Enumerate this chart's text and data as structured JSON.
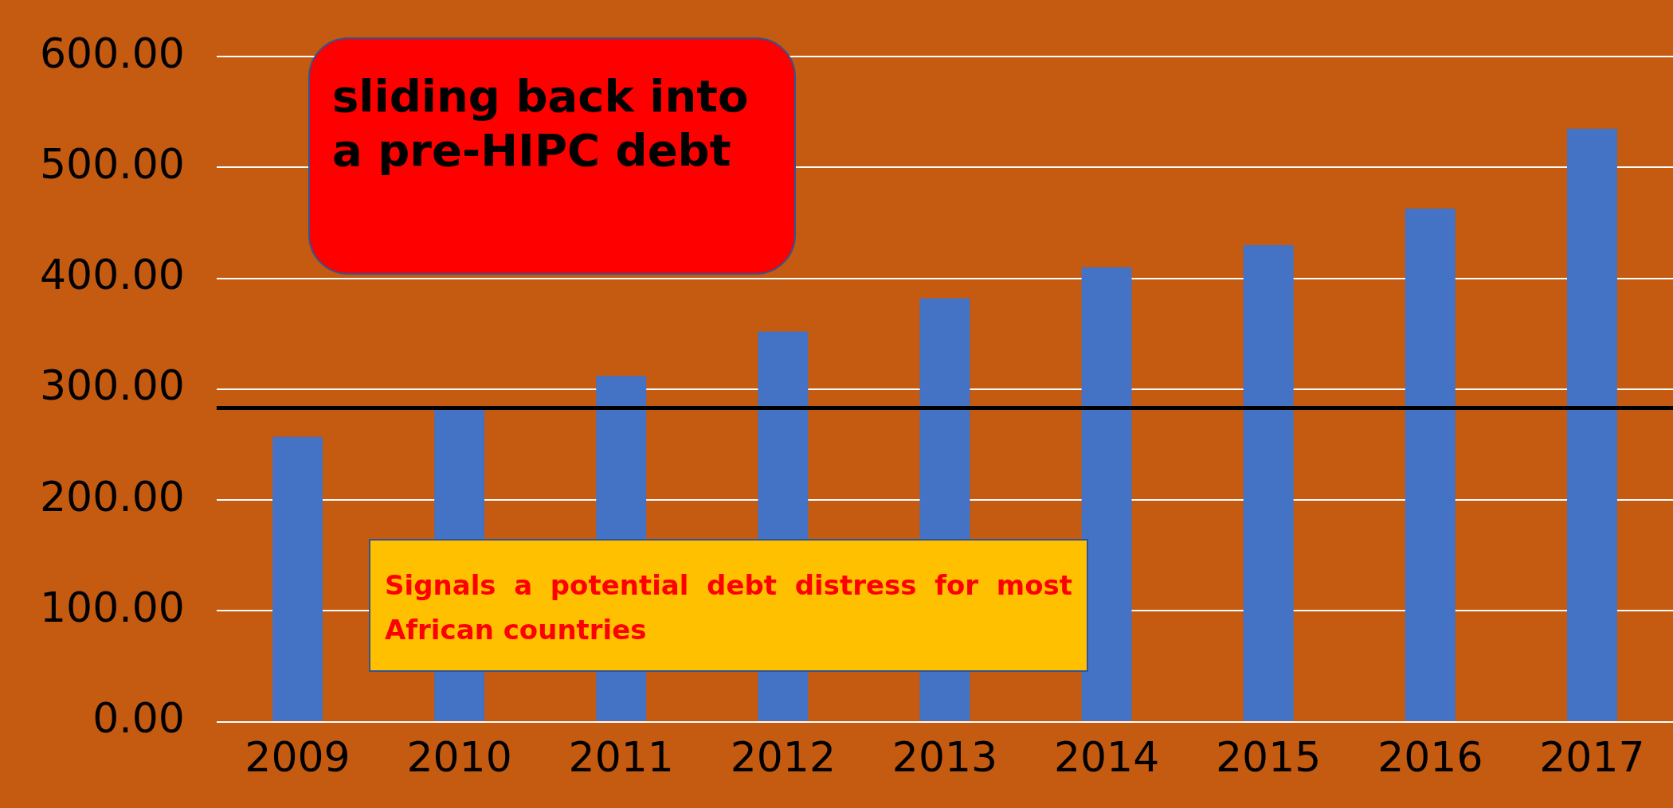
{
  "chart_data": {
    "type": "bar",
    "categories": [
      "2009",
      "2010",
      "2011",
      "2012",
      "2013",
      "2014",
      "2015",
      "2016",
      "2017"
    ],
    "values": [
      257,
      282,
      312,
      352,
      382,
      410,
      430,
      463,
      535
    ],
    "color": "#4472c4",
    "ylim": [
      0,
      600
    ],
    "yticks": [
      {
        "value": 0,
        "label": "0.00"
      },
      {
        "value": 100,
        "label": "100.00"
      },
      {
        "value": 200,
        "label": "200.00"
      },
      {
        "value": 300,
        "label": "300.00"
      },
      {
        "value": 400,
        "label": "400.00"
      },
      {
        "value": 500,
        "label": "500.00"
      },
      {
        "value": 600,
        "label": "600.00"
      }
    ],
    "grid": "y",
    "ref_lines": [
      {
        "axis": "y",
        "value": 283,
        "color": "#000000"
      }
    ],
    "annotations": [
      "sliding back into a pre-HIPC debt",
      "Signals a potential debt distress for most African countries"
    ]
  }
}
